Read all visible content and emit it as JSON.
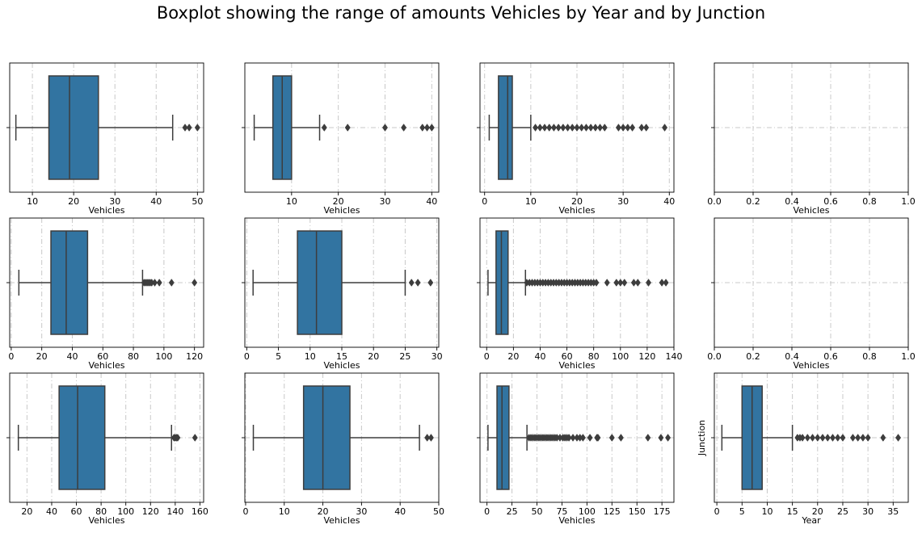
{
  "title": "Boxplot showing the range of amounts Vehicles by Year and by Junction",
  "colors": {
    "box": "#3274a1",
    "line": "#3d3d3d",
    "grid": "#c8c8c8"
  },
  "chart_data": [
    {
      "type": "boxplot",
      "xlabel": "Vehicles",
      "ylabel": "",
      "xlim": [
        4.5,
        51.5
      ],
      "xticks": [
        10,
        20,
        30,
        40,
        50
      ],
      "box": {
        "whislo": 6,
        "q1": 14,
        "med": 19,
        "q3": 26,
        "whishi": 44
      },
      "fliers": [
        47,
        48,
        50
      ],
      "grid": true
    },
    {
      "type": "boxplot",
      "xlabel": "Vehicles",
      "ylabel": "",
      "xlim": [
        0,
        41.5
      ],
      "xticks": [
        10,
        20,
        30,
        40
      ],
      "box": {
        "whislo": 2,
        "q1": 6,
        "med": 8,
        "q3": 10,
        "whishi": 16
      },
      "fliers": [
        17,
        22,
        30,
        34,
        38,
        39,
        40
      ],
      "grid": true
    },
    {
      "type": "boxplot",
      "xlabel": "Vehicles",
      "ylabel": "",
      "xlim": [
        -1,
        41
      ],
      "xticks": [
        0,
        10,
        20,
        30,
        40
      ],
      "box": {
        "whislo": 1,
        "q1": 3,
        "med": 5,
        "q3": 6,
        "whishi": 10
      },
      "fliers": [
        11,
        12,
        13,
        14,
        15,
        16,
        17,
        18,
        19,
        20,
        21,
        22,
        23,
        24,
        25,
        26,
        29,
        30,
        31,
        32,
        34,
        35,
        39
      ],
      "grid": true
    },
    {
      "type": "boxplot",
      "xlabel": "Vehicles",
      "ylabel": "",
      "xlim": [
        0,
        1
      ],
      "xticks": [
        "0.0",
        "0.2",
        "0.4",
        "0.6",
        "0.8",
        "1.0"
      ],
      "box": null,
      "fliers": [],
      "grid": true
    },
    {
      "type": "boxplot",
      "xlabel": "Vehicles",
      "ylabel": "",
      "xlim": [
        -1,
        126
      ],
      "xticks": [
        0,
        20,
        40,
        60,
        80,
        100,
        120
      ],
      "box": {
        "whislo": 5,
        "q1": 26,
        "med": 36,
        "q3": 50,
        "whishi": 86
      },
      "fliers": [
        87,
        88,
        89,
        90,
        91,
        92,
        94,
        97,
        105,
        120
      ],
      "grid": true
    },
    {
      "type": "boxplot",
      "xlabel": "Vehicles",
      "ylabel": "",
      "xlim": [
        -0.3,
        30.3
      ],
      "xticks": [
        0,
        5,
        10,
        15,
        20,
        25,
        30
      ],
      "box": {
        "whislo": 1,
        "q1": 8,
        "med": 11,
        "q3": 15,
        "whishi": 25
      },
      "fliers": [
        26,
        27,
        29
      ],
      "grid": true
    },
    {
      "type": "boxplot",
      "xlabel": "Vehicles",
      "ylabel": "",
      "xlim": [
        -5,
        140
      ],
      "xticks": [
        0,
        20,
        40,
        60,
        80,
        100,
        120,
        140
      ],
      "box": {
        "whislo": 1,
        "q1": 7,
        "med": 11,
        "q3": 16,
        "whishi": 29
      },
      "fliers": [
        30,
        32,
        34,
        36,
        38,
        40,
        42,
        44,
        46,
        48,
        50,
        52,
        54,
        56,
        58,
        60,
        62,
        64,
        66,
        68,
        70,
        72,
        74,
        76,
        78,
        80,
        82,
        90,
        97,
        100,
        103,
        110,
        113,
        121,
        131,
        134
      ],
      "grid": true
    },
    {
      "type": "boxplot",
      "xlabel": "Vehicles",
      "ylabel": "",
      "xlim": [
        0,
        1
      ],
      "xticks": [
        "0.0",
        "0.2",
        "0.4",
        "0.6",
        "0.8",
        "1.0"
      ],
      "box": null,
      "fliers": [],
      "grid": true
    },
    {
      "type": "boxplot",
      "xlabel": "Vehicles",
      "ylabel": "",
      "xlim": [
        6,
        163
      ],
      "xticks": [
        20,
        40,
        60,
        80,
        100,
        120,
        140,
        160
      ],
      "box": {
        "whislo": 13,
        "q1": 46,
        "med": 61,
        "q3": 83,
        "whishi": 137
      },
      "fliers": [
        139,
        140,
        141,
        142,
        156
      ],
      "grid": true
    },
    {
      "type": "boxplot",
      "xlabel": "Vehicles",
      "ylabel": "",
      "xlim": [
        -0.2,
        50
      ],
      "xticks": [
        0,
        10,
        20,
        30,
        40,
        50
      ],
      "box": {
        "whislo": 2,
        "q1": 15,
        "med": 20,
        "q3": 27,
        "whishi": 45
      },
      "fliers": [
        47,
        48
      ],
      "grid": true
    },
    {
      "type": "boxplot",
      "xlabel": "Vehicles",
      "ylabel": "",
      "xlim": [
        -7,
        187
      ],
      "xticks": [
        0,
        25,
        50,
        75,
        100,
        125,
        150,
        175
      ],
      "box": {
        "whislo": 1,
        "q1": 10,
        "med": 15,
        "q3": 22,
        "whishi": 40
      },
      "fliers": [
        42,
        44,
        46,
        48,
        50,
        52,
        54,
        56,
        58,
        60,
        62,
        64,
        66,
        68,
        70,
        73,
        76,
        78,
        80,
        82,
        86,
        90,
        93,
        96,
        103,
        110,
        111,
        125,
        134,
        161,
        174,
        181
      ],
      "grid": true
    },
    {
      "type": "boxplot",
      "xlabel": "Year",
      "ylabel": "Junction",
      "xlim": [
        -0.5,
        38
      ],
      "xticks": [
        0,
        5,
        10,
        15,
        20,
        25,
        30,
        35
      ],
      "box": {
        "whislo": 1,
        "q1": 5,
        "med": 7,
        "q3": 9,
        "whishi": 15
      },
      "fliers": [
        16,
        16.5,
        17,
        18,
        19,
        20,
        21,
        22,
        23,
        24,
        25,
        27,
        28,
        29,
        30,
        33,
        36
      ],
      "grid": true
    }
  ]
}
